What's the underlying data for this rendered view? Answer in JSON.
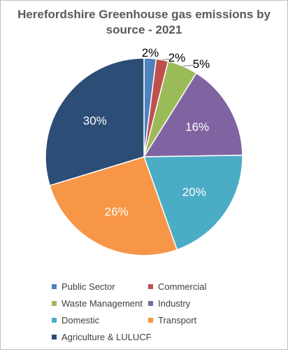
{
  "chart_data": {
    "type": "pie",
    "title_line1": "Herefordshire Greenhouse gas emissions by",
    "title_line2": "source - 2021",
    "slices": [
      {
        "name": "Public Sector",
        "value": 2,
        "label": "2%",
        "color": "#4f81bd"
      },
      {
        "name": "Commercial",
        "value": 2,
        "label": "2%",
        "color": "#c0504d"
      },
      {
        "name": "Waste Management",
        "value": 5,
        "label": "5%",
        "color": "#9bbb59"
      },
      {
        "name": "Industry",
        "value": 16,
        "label": "16%",
        "color": "#8064a2"
      },
      {
        "name": "Domestic",
        "value": 20,
        "label": "20%",
        "color": "#4bacc6"
      },
      {
        "name": "Transport",
        "value": 26,
        "label": "26%",
        "color": "#f79646"
      },
      {
        "name": "Agriculture & LULUCF",
        "value": 30,
        "label": "30%",
        "color": "#2c4d75"
      }
    ],
    "legend_position": "bottom"
  }
}
